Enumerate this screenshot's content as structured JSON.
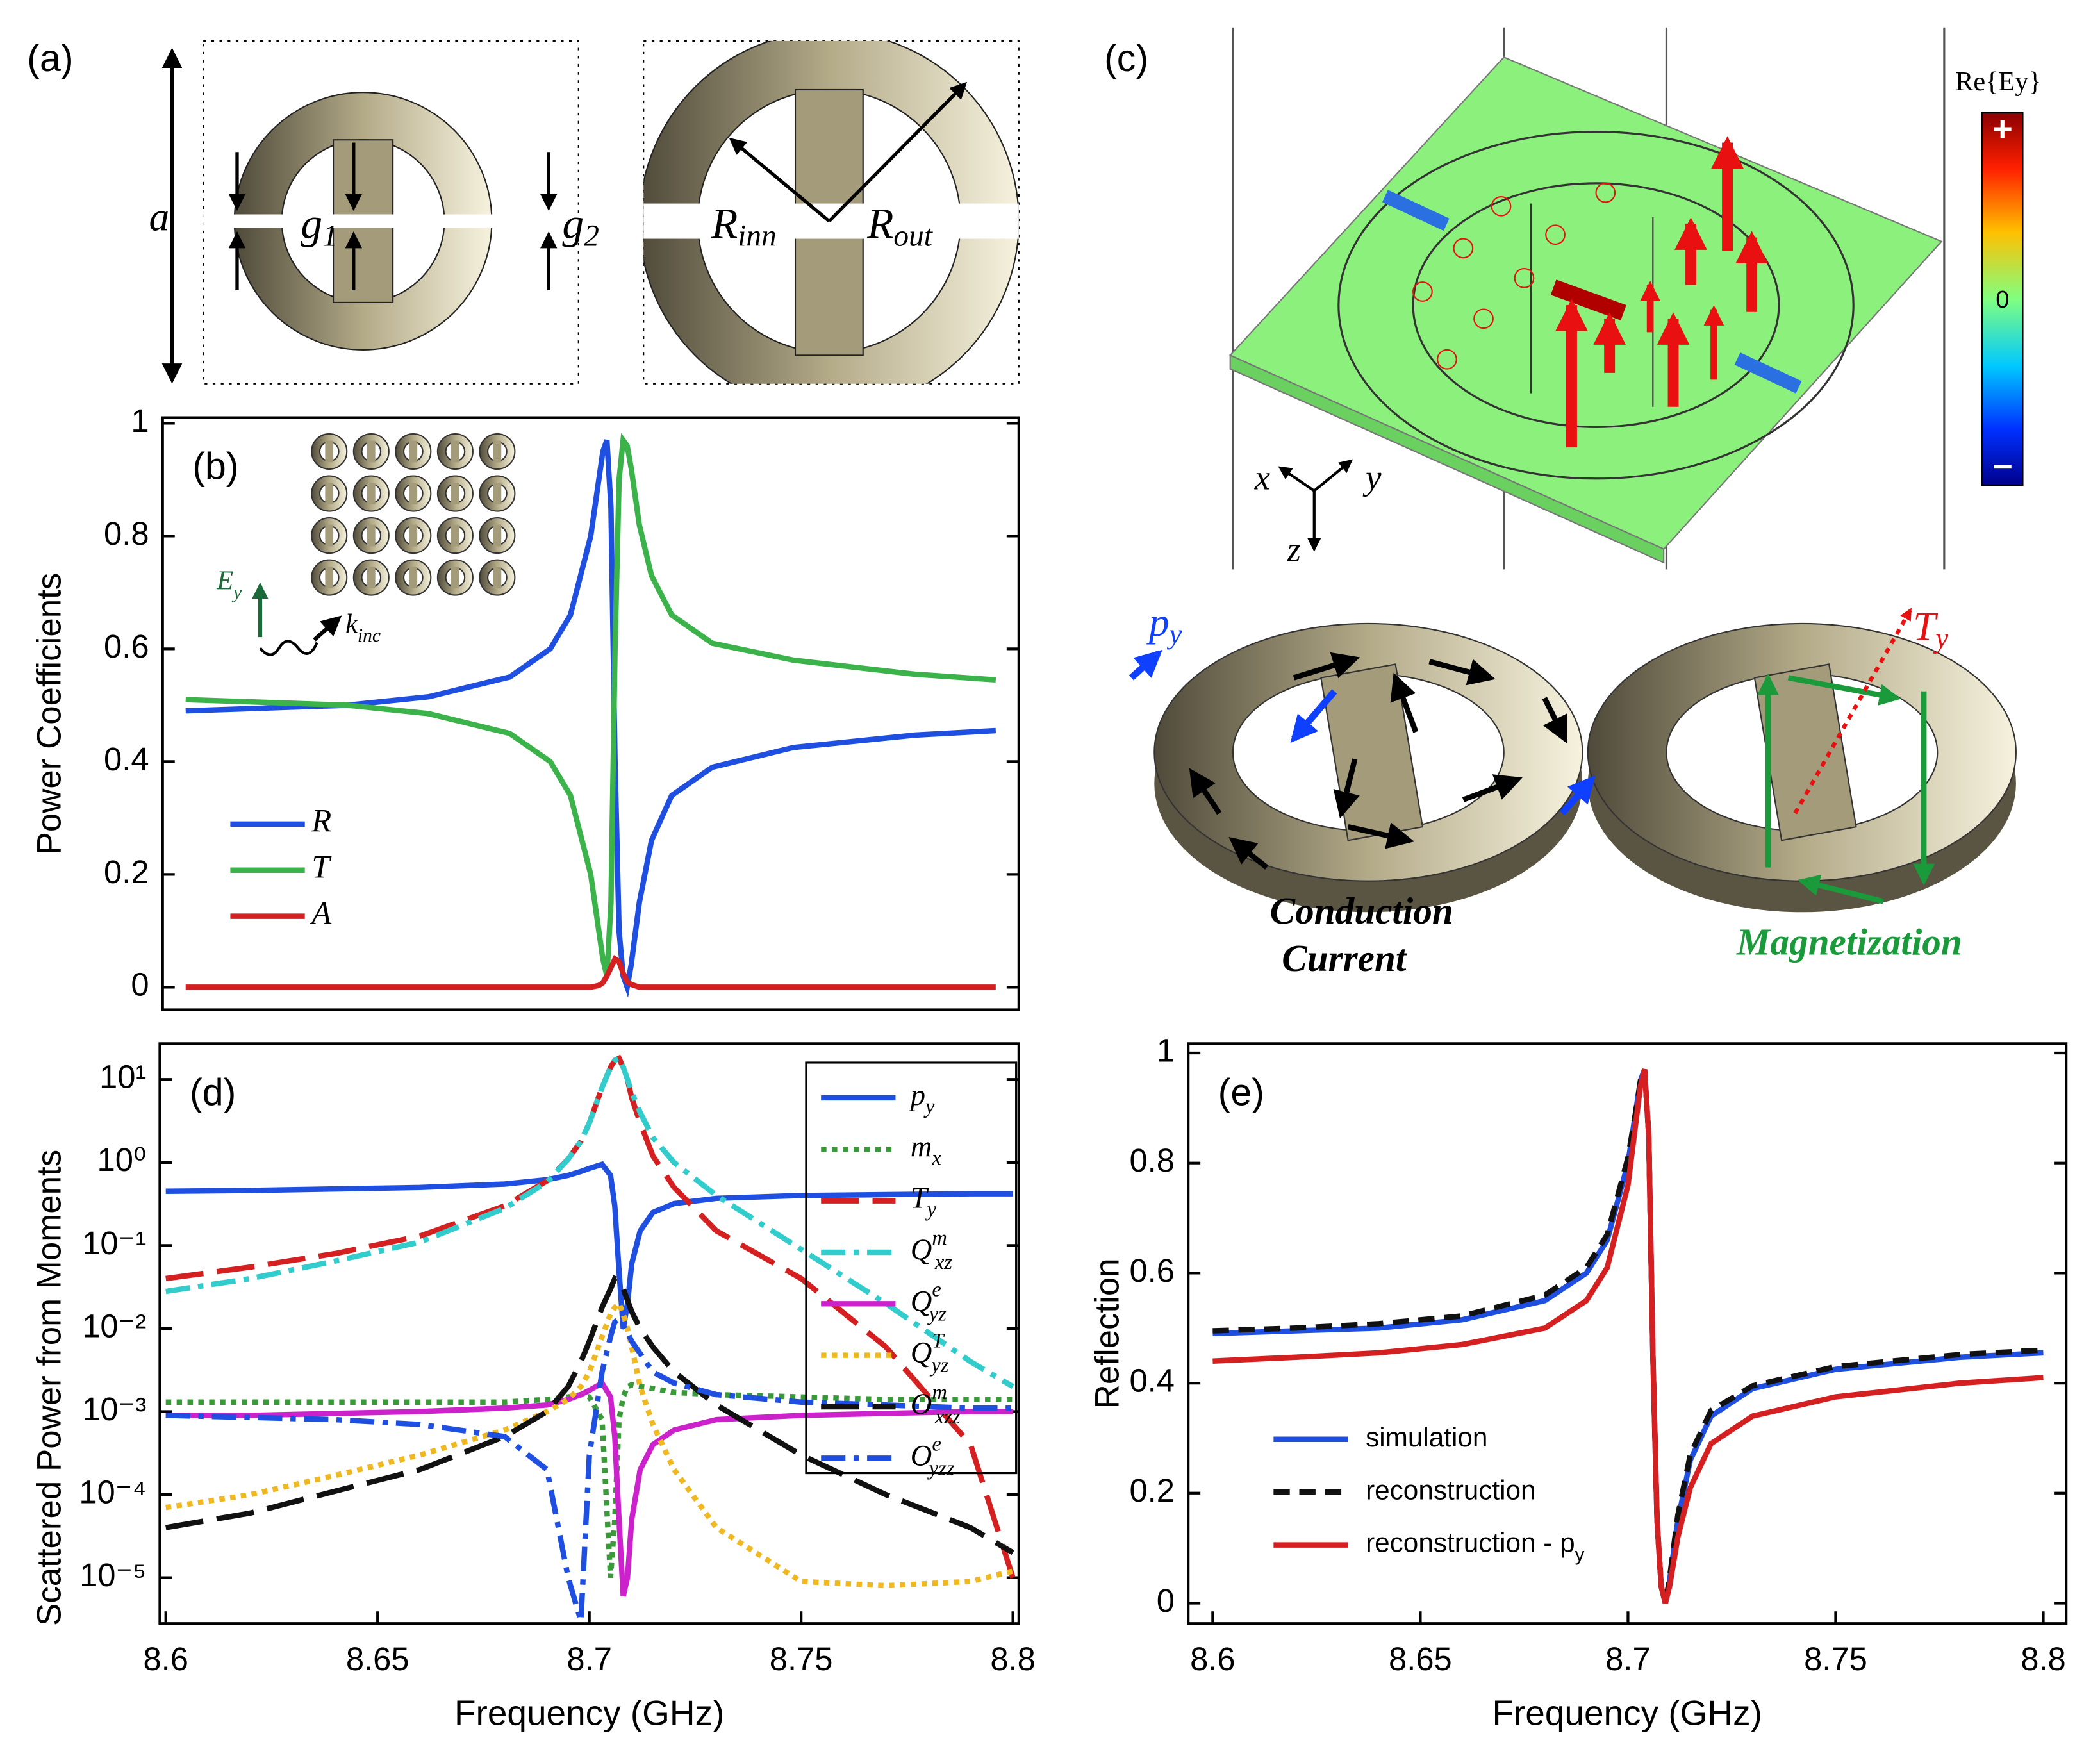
{
  "figure": {
    "a": {
      "label": "(a)",
      "period": "a",
      "g1": "g1",
      "g2": "g2",
      "Rinn": "Rinn",
      "Rout": "Rout"
    },
    "b_inset": {
      "Ey": "Ey",
      "kinc": "kinc"
    },
    "c": {
      "label": "(c)",
      "colorbar_title": "Re{Ey}",
      "plus": "+",
      "zero": "0",
      "minus": "−",
      "x": "x",
      "y": "y",
      "z": "z",
      "py": "py",
      "Ty": "Ty",
      "conduction": [
        "Conduction",
        "Current"
      ],
      "magnetization": "Magnetization"
    }
  },
  "chart_data": [
    {
      "type": "line",
      "panel": "(b)",
      "ylabel": "Power Coefficients",
      "xlim": [
        8.5943,
        8.8057
      ],
      "ylim": [
        -0.04,
        1.01
      ],
      "yticks": [
        0,
        0.2,
        0.4,
        0.6,
        0.8,
        1
      ],
      "x": [
        8.6,
        8.62,
        8.64,
        8.66,
        8.68,
        8.69,
        8.695,
        8.7,
        8.702,
        8.703,
        8.704,
        8.705,
        8.706,
        8.707,
        8.708,
        8.709,
        8.71,
        8.712,
        8.715,
        8.72,
        8.73,
        8.75,
        8.78,
        8.8
      ],
      "series": [
        {
          "name": "R",
          "color": "#1f4fe0",
          "style": "solid",
          "values": [
            0.49,
            0.495,
            0.5,
            0.515,
            0.55,
            0.6,
            0.66,
            0.8,
            0.9,
            0.95,
            0.97,
            0.85,
            0.4,
            0.1,
            0.02,
            0,
            0.04,
            0.15,
            0.26,
            0.34,
            0.39,
            0.425,
            0.447,
            0.455
          ]
        },
        {
          "name": "T",
          "color": "#3cb34a",
          "style": "solid",
          "values": [
            0.51,
            0.505,
            0.5,
            0.485,
            0.45,
            0.4,
            0.34,
            0.2,
            0.1,
            0.05,
            0.02,
            0.15,
            0.6,
            0.9,
            0.97,
            0.96,
            0.92,
            0.82,
            0.73,
            0.66,
            0.61,
            0.58,
            0.555,
            0.545
          ]
        },
        {
          "name": "A",
          "color": "#d42020",
          "style": "solid",
          "values": [
            0,
            0,
            0,
            0,
            0,
            0,
            0,
            0,
            0.003,
            0.008,
            0.02,
            0.035,
            0.05,
            0.045,
            0.025,
            0.01,
            0.005,
            0,
            0,
            0,
            0,
            0,
            0,
            0
          ]
        }
      ]
    },
    {
      "type": "line",
      "panel": "(d)",
      "ylabel": "Scattered Power from Moments",
      "xlabel": "Frequency (GHz)",
      "yscale": "log",
      "xlim": [
        8.5986,
        8.8014
      ],
      "ylim": [
        2.8e-06,
        27
      ],
      "xticks": [
        8.6,
        8.65,
        8.7,
        8.75,
        8.8
      ],
      "yticks": [
        {
          "value": 10,
          "label": "10¹"
        },
        {
          "value": 1,
          "label": "10⁰"
        },
        {
          "value": 0.1,
          "label": "10⁻¹"
        },
        {
          "value": 0.01,
          "label": "10⁻²"
        },
        {
          "value": 0.001,
          "label": "10⁻³"
        },
        {
          "value": 0.0001,
          "label": "10⁻⁴"
        },
        {
          "value": 1e-05,
          "label": "10⁻⁵"
        }
      ],
      "x": [
        8.6,
        8.62,
        8.64,
        8.66,
        8.68,
        8.69,
        8.695,
        8.698,
        8.7,
        8.703,
        8.705,
        8.706,
        8.707,
        8.708,
        8.709,
        8.71,
        8.712,
        8.715,
        8.72,
        8.73,
        8.75,
        8.77,
        8.79,
        8.8
      ],
      "series": [
        {
          "name": "py",
          "color": "#1f4fe0",
          "style": "solid",
          "values": [
            0.45,
            0.46,
            0.48,
            0.5,
            0.55,
            0.62,
            0.7,
            0.78,
            0.85,
            0.95,
            0.7,
            0.3,
            0.05,
            0.01,
            0.02,
            0.06,
            0.15,
            0.25,
            0.32,
            0.37,
            0.4,
            0.41,
            0.42,
            0.42
          ]
        },
        {
          "name": "mx",
          "color": "#3a9a3a",
          "style": "dotted",
          "values": [
            0.0013,
            0.0013,
            0.0013,
            0.0013,
            0.0013,
            0.0014,
            0.0015,
            0.0016,
            0.0015,
            0.0008,
            1e-05,
            5e-05,
            0.0008,
            0.0015,
            0.002,
            0.0021,
            0.002,
            0.0019,
            0.0017,
            0.0016,
            0.0015,
            0.0014,
            0.0014,
            0.0014
          ]
        },
        {
          "name": "Ty",
          "color": "#d42020",
          "style": "longdash",
          "values": [
            0.04,
            0.055,
            0.08,
            0.13,
            0.3,
            0.6,
            1.1,
            1.8,
            3,
            8,
            14,
            17,
            18,
            14,
            10,
            6,
            3,
            1.2,
            0.5,
            0.15,
            0.04,
            0.006,
            0.0004,
            1e-05
          ]
        },
        {
          "name": "Qmxz",
          "color": "#33cccc",
          "style": "dashdot",
          "values": [
            0.028,
            0.04,
            0.065,
            0.11,
            0.28,
            0.58,
            1.1,
            1.8,
            3,
            8,
            14,
            17,
            18,
            14,
            10,
            7,
            4,
            2,
            1,
            0.4,
            0.09,
            0.02,
            0.004,
            0.002
          ]
        },
        {
          "name": "Qeyz",
          "color": "#cc22cc",
          "style": "solid",
          "values": [
            0.0009,
            0.0009,
            0.00095,
            0.001,
            0.0011,
            0.0012,
            0.0014,
            0.0016,
            0.0018,
            0.0022,
            0.0015,
            0.0005,
            5e-05,
            6e-06,
            1e-05,
            5e-05,
            0.0002,
            0.0004,
            0.0006,
            0.0008,
            0.0009,
            0.00095,
            0.001,
            0.001
          ]
        },
        {
          "name": "QTyz",
          "color": "#f0b820",
          "style": "dotted",
          "values": [
            7e-05,
            0.0001,
            0.00017,
            0.0003,
            0.0006,
            0.001,
            0.0014,
            0.002,
            0.003,
            0.008,
            0.015,
            0.018,
            0.02,
            0.015,
            0.01,
            0.006,
            0.002,
            0.0007,
            0.0002,
            4e-05,
            9e-06,
            8e-06,
            9e-06,
            1.2e-05
          ]
        },
        {
          "name": "Omxzz",
          "color": "#111111",
          "style": "longdash",
          "values": [
            4e-05,
            6e-05,
            0.00011,
            0.0002,
            0.0005,
            0.001,
            0.002,
            0.004,
            0.007,
            0.018,
            0.03,
            0.04,
            0.038,
            0.03,
            0.022,
            0.016,
            0.01,
            0.006,
            0.003,
            0.0012,
            0.0003,
            0.0001,
            4e-05,
            2e-05
          ]
        },
        {
          "name": "Oeyzz",
          "color": "#1f4fe0",
          "style": "dashdot",
          "values": [
            0.0009,
            0.00085,
            0.0008,
            0.0007,
            0.0005,
            0.0002,
            1e-05,
            3e-06,
            0.0003,
            0.003,
            0.008,
            0.012,
            0.013,
            0.011,
            0.009,
            0.007,
            0.005,
            0.003,
            0.0022,
            0.0016,
            0.0013,
            0.0012,
            0.0011,
            0.0011
          ]
        }
      ]
    },
    {
      "type": "line",
      "panel": "(e)",
      "ylabel": "Reflection",
      "xlabel": "Frequency (GHz)",
      "xlim": [
        8.5941,
        8.8055
      ],
      "ylim": [
        -0.037,
        1.017
      ],
      "xticks": [
        8.6,
        8.65,
        8.7,
        8.75,
        8.8
      ],
      "yticks": [
        0,
        0.2,
        0.4,
        0.6,
        0.8,
        1
      ],
      "x": [
        8.6,
        8.62,
        8.64,
        8.66,
        8.68,
        8.69,
        8.695,
        8.7,
        8.702,
        8.703,
        8.704,
        8.705,
        8.706,
        8.707,
        8.708,
        8.709,
        8.71,
        8.712,
        8.715,
        8.72,
        8.73,
        8.75,
        8.78,
        8.8
      ],
      "series": [
        {
          "name": "simulation",
          "color": "#1f4fe0",
          "style": "solid",
          "values": [
            0.49,
            0.495,
            0.5,
            0.515,
            0.55,
            0.6,
            0.66,
            0.8,
            0.9,
            0.95,
            0.97,
            0.85,
            0.45,
            0.15,
            0.03,
            0,
            0.04,
            0.15,
            0.26,
            0.34,
            0.39,
            0.425,
            0.447,
            0.455
          ]
        },
        {
          "name": "reconstruction",
          "color": "#111111",
          "style": "dashed",
          "values": [
            0.495,
            0.5,
            0.508,
            0.522,
            0.56,
            0.61,
            0.67,
            0.81,
            0.9,
            0.95,
            0.97,
            0.85,
            0.45,
            0.15,
            0.03,
            0,
            0.045,
            0.16,
            0.27,
            0.35,
            0.395,
            0.43,
            0.452,
            0.46
          ]
        },
        {
          "name": "reconstruction - py",
          "color": "#d42020",
          "style": "solid",
          "values": [
            0.44,
            0.447,
            0.455,
            0.47,
            0.5,
            0.55,
            0.61,
            0.76,
            0.88,
            0.94,
            0.97,
            0.85,
            0.45,
            0.15,
            0.03,
            0,
            0.03,
            0.12,
            0.21,
            0.29,
            0.34,
            0.375,
            0.4,
            0.41
          ]
        }
      ]
    }
  ]
}
